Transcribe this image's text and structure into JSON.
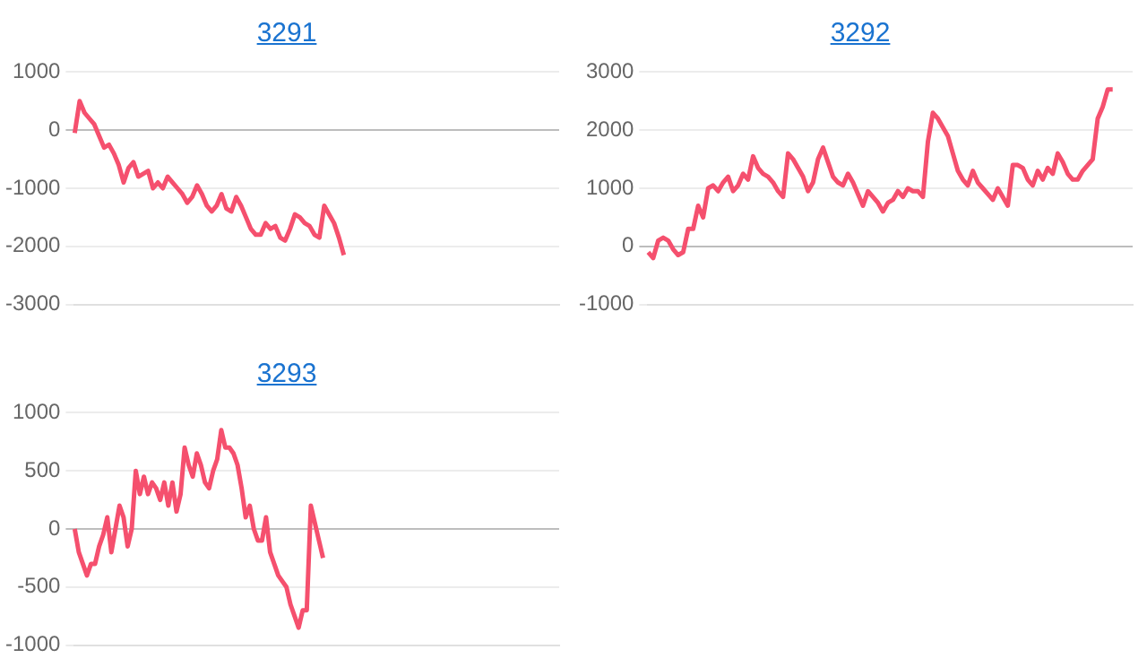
{
  "chart_data": [
    {
      "type": "line",
      "title": "3291",
      "categories": [
        null,
        null,
        null,
        null,
        null,
        null,
        null,
        null,
        null,
        null,
        null,
        null,
        null,
        null,
        null,
        null,
        null,
        null,
        null,
        null,
        null,
        null,
        null,
        null,
        null,
        null,
        null,
        null,
        null,
        null,
        null,
        null,
        null,
        null,
        null,
        null,
        null,
        null,
        null,
        null,
        null,
        null,
        null,
        null,
        null,
        null,
        null,
        null,
        null,
        null,
        null,
        null,
        null,
        null,
        null,
        null,
        null,
        null,
        null,
        null,
        null,
        null,
        null,
        null,
        null,
        null,
        null,
        null,
        null,
        null,
        null,
        null,
        null,
        null,
        null,
        null,
        null,
        null,
        null,
        null,
        null,
        null,
        null,
        null,
        null,
        null,
        null,
        null,
        null,
        null,
        null,
        null,
        null,
        null,
        null,
        null,
        null,
        null,
        null,
        null
      ],
      "series": [
        {
          "color": "#f5506e",
          "values": [
            -50,
            500,
            300,
            200,
            100,
            -100,
            -300,
            -250,
            -400,
            -600,
            -900,
            -650,
            -550,
            -800,
            -750,
            -700,
            -1000,
            -900,
            -1000,
            -800,
            -900,
            -1000,
            -1100,
            -1250,
            -1150,
            -950,
            -1100,
            -1300,
            -1400,
            -1300,
            -1100,
            -1350,
            -1400,
            -1150,
            -1300,
            -1500,
            -1700,
            -1800,
            -1800,
            -1600,
            -1700,
            -1650,
            -1850,
            -1900,
            -1700,
            -1450,
            -1500,
            -1600,
            -1650,
            -1800,
            -1850,
            -1300,
            -1450,
            -1600,
            -1850,
            -2150,
            null,
            null,
            null,
            null,
            null,
            null,
            null,
            null,
            null,
            null,
            null,
            null,
            null,
            null,
            null,
            null,
            null,
            null,
            null,
            null,
            null,
            null,
            null,
            null,
            null,
            null,
            null,
            null,
            null,
            null,
            null,
            null,
            null,
            null,
            null,
            null,
            null,
            null,
            null,
            null,
            null,
            null,
            null,
            null
          ]
        }
      ],
      "ylim": [
        -3000,
        1000
      ],
      "yticks": [
        -3000,
        -2000,
        -1000,
        0,
        1000
      ],
      "grid": "y",
      "tick_labels": "y",
      "marker": "none",
      "line_style": "solid"
    },
    {
      "type": "line",
      "title": "3292",
      "categories": [
        null,
        null,
        null,
        null,
        null,
        null,
        null,
        null,
        null,
        null,
        null,
        null,
        null,
        null,
        null,
        null,
        null,
        null,
        null,
        null,
        null,
        null,
        null,
        null,
        null,
        null,
        null,
        null,
        null,
        null,
        null,
        null,
        null,
        null,
        null,
        null,
        null,
        null,
        null,
        null,
        null,
        null,
        null,
        null,
        null,
        null,
        null,
        null,
        null,
        null,
        null,
        null,
        null,
        null,
        null,
        null,
        null,
        null,
        null,
        null,
        null,
        null,
        null,
        null,
        null,
        null,
        null,
        null,
        null,
        null,
        null,
        null,
        null,
        null,
        null,
        null,
        null,
        null,
        null,
        null,
        null,
        null,
        null,
        null,
        null,
        null,
        null,
        null,
        null,
        null,
        null,
        null,
        null,
        null,
        null,
        null,
        null,
        null
      ],
      "series": [
        {
          "color": "#f5506e",
          "values": [
            -100,
            -200,
            100,
            150,
            100,
            -50,
            -150,
            -100,
            300,
            300,
            700,
            500,
            1000,
            1050,
            950,
            1100,
            1200,
            950,
            1050,
            1250,
            1150,
            1550,
            1350,
            1250,
            1200,
            1100,
            950,
            850,
            1600,
            1500,
            1350,
            1200,
            950,
            1100,
            1500,
            1700,
            1450,
            1200,
            1100,
            1050,
            1250,
            1100,
            900,
            700,
            950,
            850,
            750,
            600,
            750,
            800,
            950,
            850,
            1000,
            950,
            950,
            850,
            1800,
            2300,
            2200,
            2050,
            1900,
            1600,
            1300,
            1150,
            1050,
            1300,
            1100,
            1000,
            900,
            800,
            1000,
            850,
            700,
            1400,
            1400,
            1350,
            1150,
            1050,
            1300,
            1150,
            1350,
            1250,
            1600,
            1450,
            1250,
            1150,
            1150,
            1300,
            1400,
            1500,
            2200,
            2400,
            2700,
            2700,
            null,
            null,
            null,
            null
          ]
        }
      ],
      "ylim": [
        -1000,
        3000
      ],
      "yticks": [
        -1000,
        0,
        1000,
        2000,
        3000
      ],
      "grid": "y",
      "tick_labels": "y",
      "marker": "none",
      "line_style": "solid"
    },
    {
      "type": "line",
      "title": "3293",
      "categories": [
        null,
        null,
        null,
        null,
        null,
        null,
        null,
        null,
        null,
        null,
        null,
        null,
        null,
        null,
        null,
        null,
        null,
        null,
        null,
        null,
        null,
        null,
        null,
        null,
        null,
        null,
        null,
        null,
        null,
        null,
        null,
        null,
        null,
        null,
        null,
        null,
        null,
        null,
        null,
        null,
        null,
        null,
        null,
        null,
        null,
        null,
        null,
        null,
        null,
        null,
        null,
        null,
        null,
        null,
        null,
        null,
        null,
        null,
        null,
        null,
        null,
        null,
        null,
        null,
        null,
        null,
        null,
        null,
        null,
        null,
        null,
        null,
        null,
        null,
        null,
        null,
        null,
        null,
        null,
        null,
        null,
        null,
        null,
        null,
        null,
        null,
        null,
        null,
        null,
        null,
        null,
        null,
        null,
        null,
        null,
        null,
        null,
        null,
        null,
        null,
        null,
        null,
        null,
        null,
        null,
        null,
        null,
        null,
        null,
        null,
        null,
        null,
        null,
        null,
        null,
        null,
        null,
        null,
        null,
        null
      ],
      "series": [
        {
          "color": "#f5506e",
          "values": [
            0,
            -200,
            -300,
            -400,
            -300,
            -300,
            -150,
            -50,
            100,
            -200,
            0,
            200,
            100,
            -150,
            0,
            500,
            300,
            450,
            300,
            400,
            350,
            250,
            400,
            200,
            400,
            150,
            300,
            700,
            550,
            450,
            650,
            550,
            400,
            350,
            500,
            600,
            850,
            700,
            700,
            650,
            550,
            350,
            100,
            200,
            0,
            -100,
            -100,
            100,
            -200,
            -300,
            -400,
            -450,
            -500,
            -650,
            -750,
            -850,
            -700,
            -700,
            200,
            50,
            -100,
            -250,
            null,
            null,
            null,
            null,
            null,
            null,
            null,
            null,
            null,
            null,
            null,
            null,
            null,
            null,
            null,
            null,
            null,
            null,
            null,
            null,
            null,
            null,
            null,
            null,
            null,
            null,
            null,
            null,
            null,
            null,
            null,
            null,
            null,
            null,
            null,
            null,
            null,
            null,
            null,
            null,
            null,
            null,
            null,
            null,
            null,
            null,
            null,
            null,
            null,
            null,
            null,
            null,
            null,
            null,
            null,
            null,
            null,
            null
          ]
        }
      ],
      "ylim": [
        -1000,
        1000
      ],
      "yticks": [
        -1000,
        -500,
        0,
        500,
        1000
      ],
      "grid": "y",
      "tick_labels": "y",
      "marker": "none",
      "line_style": "solid"
    }
  ]
}
